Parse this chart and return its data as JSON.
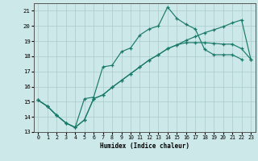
{
  "xlabel": "Humidex (Indice chaleur)",
  "background_color": "#cce8e8",
  "grid_color": "#aacccc",
  "line_color": "#1a7a6a",
  "xlim": [
    -0.5,
    23.5
  ],
  "ylim": [
    13,
    21.5
  ],
  "yticks": [
    13,
    14,
    15,
    16,
    17,
    18,
    19,
    20,
    21
  ],
  "xticks": [
    0,
    1,
    2,
    3,
    4,
    5,
    6,
    7,
    8,
    9,
    10,
    11,
    12,
    13,
    14,
    15,
    16,
    17,
    18,
    19,
    20,
    21,
    22,
    23
  ],
  "line1_x": [
    0,
    1,
    2,
    3,
    4,
    5,
    6,
    7,
    8,
    9,
    10,
    11,
    12,
    13,
    14,
    15,
    16,
    17,
    18,
    19,
    20,
    21,
    22
  ],
  "line1_y": [
    15.1,
    14.7,
    14.1,
    13.6,
    13.3,
    15.2,
    15.3,
    17.3,
    17.4,
    18.3,
    18.55,
    19.4,
    19.8,
    20.0,
    21.25,
    20.5,
    20.1,
    19.8,
    18.45,
    18.1,
    18.1,
    18.1,
    17.8
  ],
  "line2_x": [
    0,
    1,
    2,
    3,
    4,
    5,
    6,
    7,
    8,
    9,
    10,
    11,
    12,
    13,
    14,
    15,
    16,
    17,
    18,
    19,
    20,
    21,
    22,
    23
  ],
  "line2_y": [
    15.1,
    14.7,
    14.1,
    13.6,
    13.3,
    13.8,
    15.2,
    15.45,
    15.95,
    16.4,
    16.85,
    17.3,
    17.75,
    18.1,
    18.5,
    18.75,
    19.05,
    19.3,
    19.55,
    19.75,
    19.95,
    20.2,
    20.4,
    17.8
  ],
  "line3_x": [
    0,
    1,
    2,
    3,
    4,
    5,
    6,
    7,
    8,
    9,
    10,
    11,
    12,
    13,
    14,
    15,
    16,
    17,
    18,
    19,
    20,
    21,
    22,
    23
  ],
  "line3_y": [
    15.1,
    14.7,
    14.1,
    13.6,
    13.3,
    13.8,
    15.2,
    15.45,
    15.95,
    16.4,
    16.85,
    17.3,
    17.75,
    18.1,
    18.5,
    18.75,
    18.9,
    18.9,
    18.9,
    18.85,
    18.8,
    18.8,
    18.5,
    17.8
  ]
}
